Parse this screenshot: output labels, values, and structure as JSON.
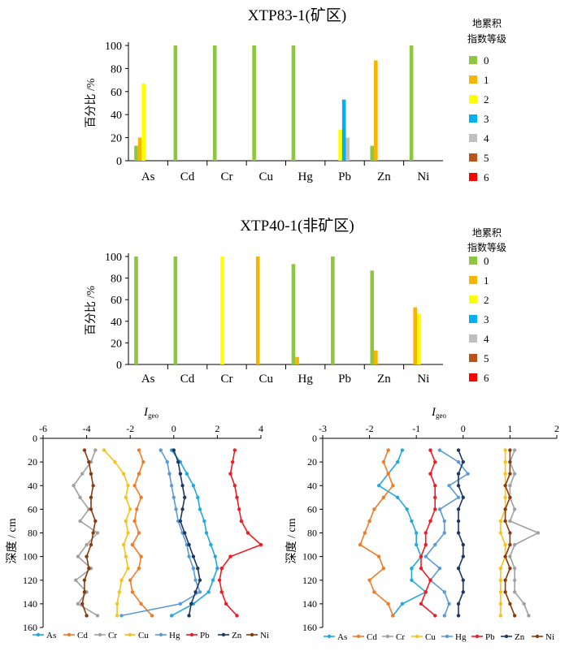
{
  "colors": {
    "class0": "#8dc63f",
    "class1": "#f7b500",
    "class2": "#ffff00",
    "class3": "#00b0f0",
    "class4": "#bfbfbf",
    "class5": "#b8531a",
    "class6": "#ff0000",
    "As": "#22a8e0",
    "Cd": "#f07c28",
    "Cr": "#a0a0a0",
    "Cu": "#f7c21b",
    "Hg": "#5b9bd5",
    "Pb": "#ee1c24",
    "Zn": "#1f3864",
    "Ni": "#8b3a0e"
  },
  "chart_data": [
    {
      "type": "bar",
      "title": "XTP83-1(矿区)",
      "ylabel": "百分比 /%",
      "ylim": [
        0,
        100
      ],
      "yticks": [
        0,
        20,
        40,
        60,
        80,
        100
      ],
      "categories": [
        "As",
        "Cd",
        "Cr",
        "Cu",
        "Hg",
        "Pb",
        "Zn",
        "Ni"
      ],
      "legend_title": [
        "地累积",
        "指数等级"
      ],
      "legend_position": "right",
      "series": [
        {
          "name": "0",
          "color_key": "class0",
          "values": [
            13,
            100,
            100,
            100,
            100,
            0,
            13,
            100
          ]
        },
        {
          "name": "1",
          "color_key": "class1",
          "values": [
            20,
            0,
            0,
            0,
            0,
            0,
            87,
            0
          ]
        },
        {
          "name": "2",
          "color_key": "class2",
          "values": [
            67,
            0,
            0,
            0,
            0,
            27,
            0,
            0
          ]
        },
        {
          "name": "3",
          "color_key": "class3",
          "values": [
            0,
            0,
            0,
            0,
            0,
            53,
            0,
            0
          ]
        },
        {
          "name": "4",
          "color_key": "class4",
          "values": [
            0,
            0,
            0,
            0,
            0,
            20,
            0,
            0
          ]
        },
        {
          "name": "5",
          "color_key": "class5",
          "values": [
            0,
            0,
            0,
            0,
            0,
            0,
            0,
            0
          ]
        },
        {
          "name": "6",
          "color_key": "class6",
          "values": [
            0,
            0,
            0,
            0,
            0,
            0,
            0,
            0
          ]
        }
      ]
    },
    {
      "type": "bar",
      "title": "XTP40-1(非矿区)",
      "ylabel": "百分比 /%",
      "ylim": [
        0,
        100
      ],
      "yticks": [
        0,
        20,
        40,
        60,
        80,
        100
      ],
      "categories": [
        "As",
        "Cd",
        "Cr",
        "Cu",
        "Hg",
        "Pb",
        "Zn",
        "Ni"
      ],
      "legend_title": [
        "地累积",
        "指数等级"
      ],
      "legend_position": "right",
      "series": [
        {
          "name": "0",
          "color_key": "class0",
          "values": [
            100,
            100,
            0,
            0,
            93,
            100,
            87,
            0
          ]
        },
        {
          "name": "1",
          "color_key": "class1",
          "values": [
            0,
            0,
            0,
            100,
            7,
            0,
            13,
            53
          ]
        },
        {
          "name": "2",
          "color_key": "class2",
          "values": [
            0,
            0,
            100,
            0,
            0,
            0,
            0,
            47
          ]
        },
        {
          "name": "3",
          "color_key": "class3",
          "values": [
            0,
            0,
            0,
            0,
            0,
            0,
            0,
            0
          ]
        },
        {
          "name": "4",
          "color_key": "class4",
          "values": [
            0,
            0,
            0,
            0,
            0,
            0,
            0,
            0
          ]
        },
        {
          "name": "5",
          "color_key": "class5",
          "values": [
            0,
            0,
            0,
            0,
            0,
            0,
            0,
            0
          ]
        },
        {
          "name": "6",
          "color_key": "class6",
          "values": [
            0,
            0,
            0,
            0,
            0,
            0,
            0,
            0
          ]
        }
      ]
    },
    {
      "type": "line",
      "xlabel_main": "I",
      "xlabel_sub": "geo",
      "ylabel": "深度 / cm",
      "xlim": [
        -6,
        4
      ],
      "xticks": [
        -6,
        -4,
        -2,
        0,
        2,
        4
      ],
      "ylim": [
        160,
        0
      ],
      "yticks": [
        0,
        20,
        40,
        60,
        80,
        100,
        120,
        140,
        160
      ],
      "legend_position": "bottom",
      "depths": [
        10,
        20,
        30,
        40,
        50,
        60,
        70,
        80,
        90,
        100,
        110,
        120,
        130,
        140,
        150
      ],
      "series": [
        {
          "name": "As",
          "color_key": "As",
          "values": [
            -0.1,
            0.3,
            0.6,
            0.9,
            1.1,
            1.2,
            1.4,
            1.5,
            1.7,
            1.9,
            2.0,
            1.8,
            1.6,
            0.9,
            -0.1
          ]
        },
        {
          "name": "Cd",
          "color_key": "Cd",
          "values": [
            -1.6,
            -1.4,
            -1.6,
            -1.8,
            -1.5,
            -1.7,
            -1.8,
            -1.6,
            -1.9,
            -1.5,
            -1.6,
            -2.0,
            -1.9,
            -1.5,
            -1.0
          ]
        },
        {
          "name": "Cr",
          "color_key": "Cr",
          "values": [
            -3.6,
            -3.8,
            -4.2,
            -4.6,
            -4.3,
            -3.9,
            -4.3,
            -3.5,
            -4.0,
            -4.4,
            -3.8,
            -4.5,
            -4.0,
            -4.4,
            -3.5
          ]
        },
        {
          "name": "Cu",
          "color_key": "Cu",
          "values": [
            -3.2,
            -2.7,
            -2.3,
            -2.1,
            -2.2,
            -2.0,
            -2.2,
            -2.1,
            -2.3,
            -2.2,
            -2.1,
            -2.4,
            -2.5,
            -2.6,
            -2.6
          ]
        },
        {
          "name": "Hg",
          "color_key": "Hg",
          "values": [
            -0.6,
            -0.3,
            -0.2,
            -0.1,
            0.0,
            0.1,
            0.2,
            0.4,
            0.6,
            0.7,
            0.9,
            1.0,
            1.2,
            0.3,
            -2.4
          ]
        },
        {
          "name": "Pb",
          "color_key": "Pb",
          "values": [
            2.8,
            2.7,
            2.6,
            2.8,
            2.9,
            3.0,
            3.1,
            3.4,
            4.0,
            2.6,
            2.2,
            2.1,
            2.2,
            2.4,
            2.9
          ]
        },
        {
          "name": "Zn",
          "color_key": "Zn",
          "values": [
            0.0,
            0.2,
            0.3,
            0.4,
            0.5,
            0.4,
            0.3,
            0.5,
            0.7,
            0.9,
            1.1,
            1.2,
            1.0,
            0.8,
            0.7
          ]
        },
        {
          "name": "Ni",
          "color_key": "Ni",
          "values": [
            -4.1,
            -3.9,
            -3.8,
            -3.7,
            -3.8,
            -3.8,
            -3.6,
            -3.7,
            -3.8,
            -4.0,
            -3.9,
            -4.1,
            -4.1,
            -4.2,
            -4.0
          ]
        }
      ]
    },
    {
      "type": "line",
      "xlabel_main": "I",
      "xlabel_sub": "geo",
      "ylabel": "深度 / cm",
      "xlim": [
        -3,
        2
      ],
      "xticks": [
        -3,
        -2,
        -1,
        0,
        1,
        2
      ],
      "ylim": [
        160,
        0
      ],
      "yticks": [
        0,
        20,
        40,
        60,
        80,
        100,
        120,
        140,
        160
      ],
      "legend_position": "bottom",
      "depths": [
        10,
        20,
        30,
        40,
        50,
        60,
        70,
        80,
        90,
        100,
        110,
        120,
        130,
        140,
        150
      ],
      "series": [
        {
          "name": "As",
          "color_key": "As",
          "values": [
            -1.3,
            -1.4,
            -1.6,
            -1.8,
            -1.4,
            -1.2,
            -1.1,
            -1.0,
            -1.0,
            -0.9,
            -1.1,
            -1.1,
            -0.8,
            -1.3,
            -1.5
          ]
        },
        {
          "name": "Cd",
          "color_key": "Cd",
          "values": [
            -1.6,
            -1.7,
            -1.6,
            -1.5,
            -1.7,
            -1.9,
            -2.0,
            -2.1,
            -2.2,
            -1.8,
            -1.7,
            -2.0,
            -1.9,
            -1.6,
            -1.5
          ]
        },
        {
          "name": "Cr",
          "color_key": "Cr",
          "values": [
            1.1,
            1.0,
            1.1,
            1.0,
            1.0,
            1.1,
            1.0,
            1.6,
            1.1,
            1.0,
            1.1,
            1.1,
            1.1,
            1.3,
            1.4
          ]
        },
        {
          "name": "Cu",
          "color_key": "Cu",
          "values": [
            0.9,
            0.9,
            0.9,
            0.9,
            0.9,
            0.9,
            0.8,
            0.8,
            0.9,
            0.9,
            0.8,
            0.8,
            0.8,
            0.8,
            0.8
          ]
        },
        {
          "name": "Hg",
          "color_key": "Hg",
          "values": [
            -0.5,
            -0.1,
            0.1,
            -0.3,
            -0.1,
            -0.5,
            -0.4,
            -0.4,
            -0.6,
            -0.8,
            -0.5,
            -0.7,
            -0.4,
            -0.3,
            -0.4
          ]
        },
        {
          "name": "Pb",
          "color_key": "Pb",
          "values": [
            -0.7,
            -0.6,
            -0.7,
            -0.6,
            -0.6,
            -0.6,
            -0.7,
            -0.8,
            -0.8,
            -0.9,
            -0.9,
            -0.7,
            -0.8,
            -0.9,
            -0.6
          ]
        },
        {
          "name": "Zn",
          "color_key": "Zn",
          "values": [
            -0.1,
            0.0,
            -0.1,
            -0.1,
            0.0,
            -0.1,
            -0.1,
            -0.1,
            0.0,
            0.0,
            -0.1,
            0.0,
            0.0,
            -0.1,
            -0.1
          ]
        },
        {
          "name": "Ni",
          "color_key": "Ni",
          "values": [
            1.0,
            1.0,
            1.0,
            0.9,
            1.0,
            0.9,
            0.9,
            1.0,
            1.0,
            0.9,
            1.0,
            0.9,
            0.9,
            1.0,
            1.1
          ]
        }
      ]
    }
  ]
}
